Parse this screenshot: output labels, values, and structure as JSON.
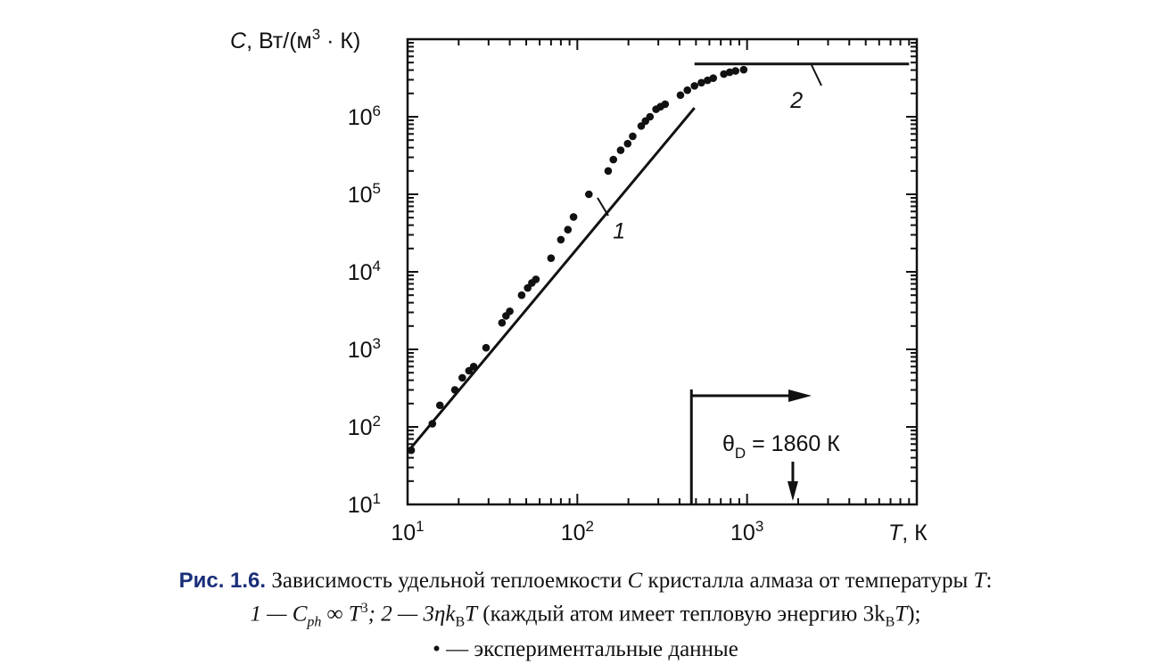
{
  "chart_data": {
    "type": "scatter",
    "title": "",
    "ylabel": {
      "var": "C",
      "unit_prefix": ", Вт/(м",
      "exp": "3",
      "unit_suffix": " · К)"
    },
    "xlabel": {
      "var": "T",
      "unit": ", К"
    },
    "xscale": "log",
    "yscale": "log",
    "xlim": [
      10,
      10000
    ],
    "ylim": [
      10,
      10000000
    ],
    "x_ticks": [
      {
        "value": 10,
        "base": "10",
        "exp": "1"
      },
      {
        "value": 100,
        "base": "10",
        "exp": "2"
      },
      {
        "value": 1000,
        "base": "10",
        "exp": "3"
      }
    ],
    "y_ticks": [
      {
        "value": 10,
        "base": "10",
        "exp": "1"
      },
      {
        "value": 100,
        "base": "10",
        "exp": "2"
      },
      {
        "value": 1000,
        "base": "10",
        "exp": "3"
      },
      {
        "value": 10000,
        "base": "10",
        "exp": "4"
      },
      {
        "value": 100000,
        "base": "10",
        "exp": "5"
      },
      {
        "value": 1000000,
        "base": "10",
        "exp": "6"
      }
    ],
    "series": [
      {
        "kind": "points",
        "points": [
          [
            10.5,
            50
          ],
          [
            14,
            110
          ],
          [
            15.5,
            190
          ],
          [
            19,
            300
          ],
          [
            21,
            430
          ],
          [
            23,
            530
          ],
          [
            24.5,
            600
          ],
          [
            29,
            1050
          ],
          [
            36,
            2200
          ],
          [
            38,
            2700
          ],
          [
            40,
            3100
          ],
          [
            47,
            5000
          ],
          [
            51,
            6200
          ],
          [
            54,
            7200
          ],
          [
            57,
            8000
          ],
          [
            70,
            15000
          ],
          [
            80,
            26000
          ],
          [
            88,
            35000
          ],
          [
            95,
            51000
          ],
          [
            117,
            100000
          ],
          [
            152,
            200000
          ],
          [
            163,
            280000
          ],
          [
            180,
            370000
          ],
          [
            198,
            450000
          ],
          [
            212,
            560000
          ],
          [
            238,
            760000
          ],
          [
            252,
            880000
          ],
          [
            268,
            1000000
          ],
          [
            291,
            1250000
          ],
          [
            309,
            1350000
          ],
          [
            329,
            1450000
          ],
          [
            405,
            1900000
          ],
          [
            445,
            2200000
          ],
          [
            490,
            2500000
          ],
          [
            538,
            2750000
          ],
          [
            585,
            2950000
          ],
          [
            632,
            3150000
          ],
          [
            730,
            3550000
          ],
          [
            790,
            3750000
          ],
          [
            855,
            3900000
          ],
          [
            955,
            4050000
          ]
        ]
      },
      {
        "kind": "line",
        "label": "1",
        "points": [
          [
            10.2,
            50
          ],
          [
            490,
            1300000
          ]
        ]
      },
      {
        "kind": "line",
        "label": "2",
        "points": [
          [
            490,
            4800000
          ],
          [
            9000,
            4800000
          ]
        ]
      }
    ],
    "curve_labels": [
      {
        "text": "1",
        "at": [
          162,
          27000
        ]
      },
      {
        "text": "2",
        "at": [
          1800,
          1300000
        ]
      }
    ],
    "annotations": {
      "theta_d": {
        "symbol": "θ",
        "sub": "D",
        "rest": " = 1860 К",
        "value": 1860
      },
      "bracket_x": 470,
      "bracket_arrow_end_x": 2400
    }
  },
  "caption": {
    "label": "Рис. 1.6.",
    "line1": " Зависимость удельной теплоемкости ",
    "var_C": "C",
    "line1_mid": " кристалла алмаза от температуры ",
    "var_T": "T",
    "line1_end": ":",
    "l2_p1": "1 — C",
    "l2_ph": "ph",
    "l2_p2": " ∞ T",
    "l2_sup": "3",
    "l2_p3": "; 2 — 3ηk",
    "l2_B": "B",
    "l2_p4": "T",
    "l2_p5": " (каждый атом имеет тепловую энергию 3k",
    "l2_B2": "B",
    "l2_p6": "T",
    "l2_p7": ");",
    "line3": "• — экспериментальные данные"
  }
}
